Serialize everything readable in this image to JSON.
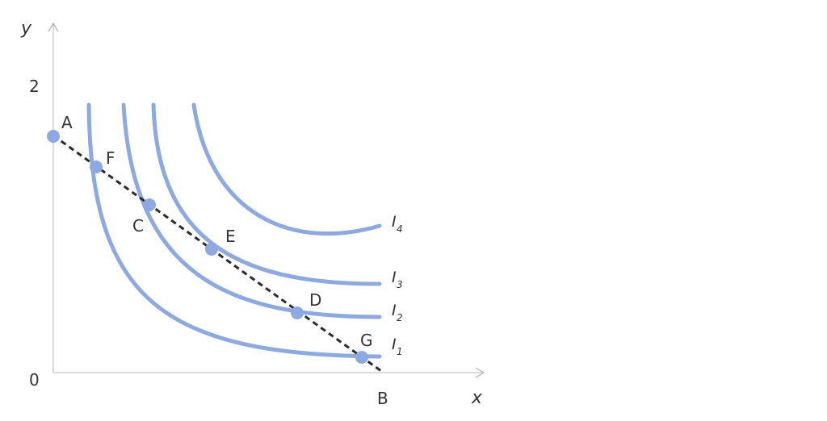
{
  "axes": {
    "x_label": "x",
    "y_label": "y",
    "origin_label": "0",
    "y_tick_label": "2",
    "x_intercept_label": "B"
  },
  "curves": [
    {
      "name": "I",
      "sub": "1"
    },
    {
      "name": "I",
      "sub": "2"
    },
    {
      "name": "I",
      "sub": "3"
    },
    {
      "name": "I",
      "sub": "4"
    }
  ],
  "points": [
    {
      "label": "A"
    },
    {
      "label": "F"
    },
    {
      "label": "C"
    },
    {
      "label": "E"
    },
    {
      "label": "D"
    },
    {
      "label": "G"
    }
  ],
  "colors": {
    "curve": "#8ea9e0",
    "point": "#8ea9e0",
    "budget_line": "#2b2b2b"
  }
}
